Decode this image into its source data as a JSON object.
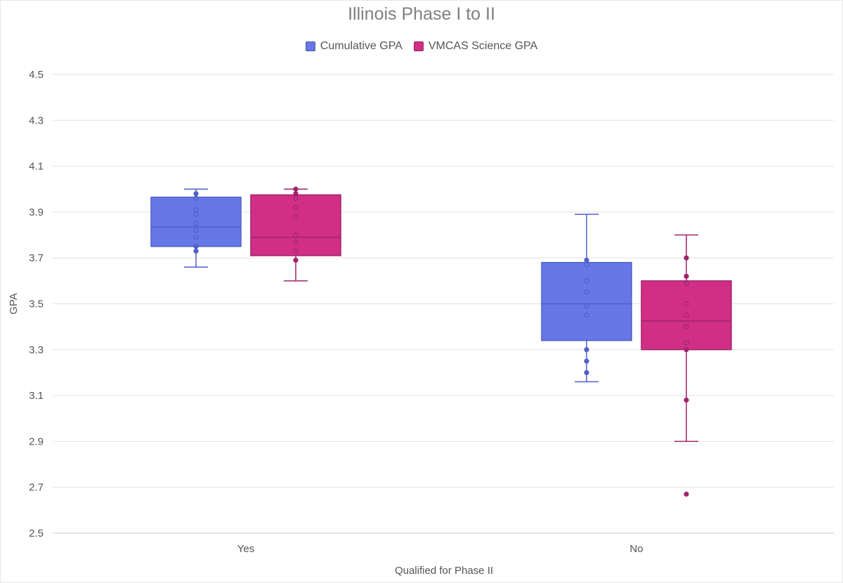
{
  "chart_data": {
    "type": "box",
    "title": "Illinois Phase I to II",
    "xlabel": "Qualified for Phase II",
    "ylabel": "GPA",
    "ylim": [
      2.5,
      4.5
    ],
    "yticks": [
      "2.5",
      "2.7",
      "2.9",
      "3.1",
      "3.3",
      "3.5",
      "3.7",
      "3.9",
      "4.1",
      "4.3",
      "4.5"
    ],
    "categories": [
      "Yes",
      "No"
    ],
    "grid": true,
    "legend_position": "top-center",
    "series": [
      {
        "name": "Cumulative GPA",
        "color": "#6677e6",
        "line_color": "#5060c8",
        "boxes": [
          {
            "category": "Yes",
            "min": 3.66,
            "q1": 3.75,
            "median": 3.835,
            "q3": 3.965,
            "max": 4.0,
            "points": [
              3.98,
              3.96,
              3.91,
              3.89,
              3.85,
              3.82,
              3.79,
              3.75,
              3.73
            ]
          },
          {
            "category": "No",
            "min": 3.16,
            "q1": 3.34,
            "median": 3.5,
            "q3": 3.68,
            "max": 3.89,
            "points": [
              3.69,
              3.67,
              3.6,
              3.55,
              3.49,
              3.45,
              3.3,
              3.25,
              3.2
            ]
          }
        ]
      },
      {
        "name": "VMCAS Science GPA",
        "color": "#d12f86",
        "line_color": "#a0246c",
        "boxes": [
          {
            "category": "Yes",
            "min": 3.6,
            "q1": 3.71,
            "median": 3.79,
            "q3": 3.975,
            "max": 4.0,
            "points": [
              4.0,
              3.98,
              3.96,
              3.92,
              3.88,
              3.8,
              3.77,
              3.73,
              3.69
            ]
          },
          {
            "category": "No",
            "min": 2.9,
            "q1": 3.3,
            "median": 3.425,
            "q3": 3.6,
            "max": 3.8,
            "points": [
              3.7,
              3.62,
              3.59,
              3.5,
              3.45,
              3.4,
              3.33,
              3.3,
              3.08,
              2.67
            ]
          }
        ]
      }
    ]
  }
}
